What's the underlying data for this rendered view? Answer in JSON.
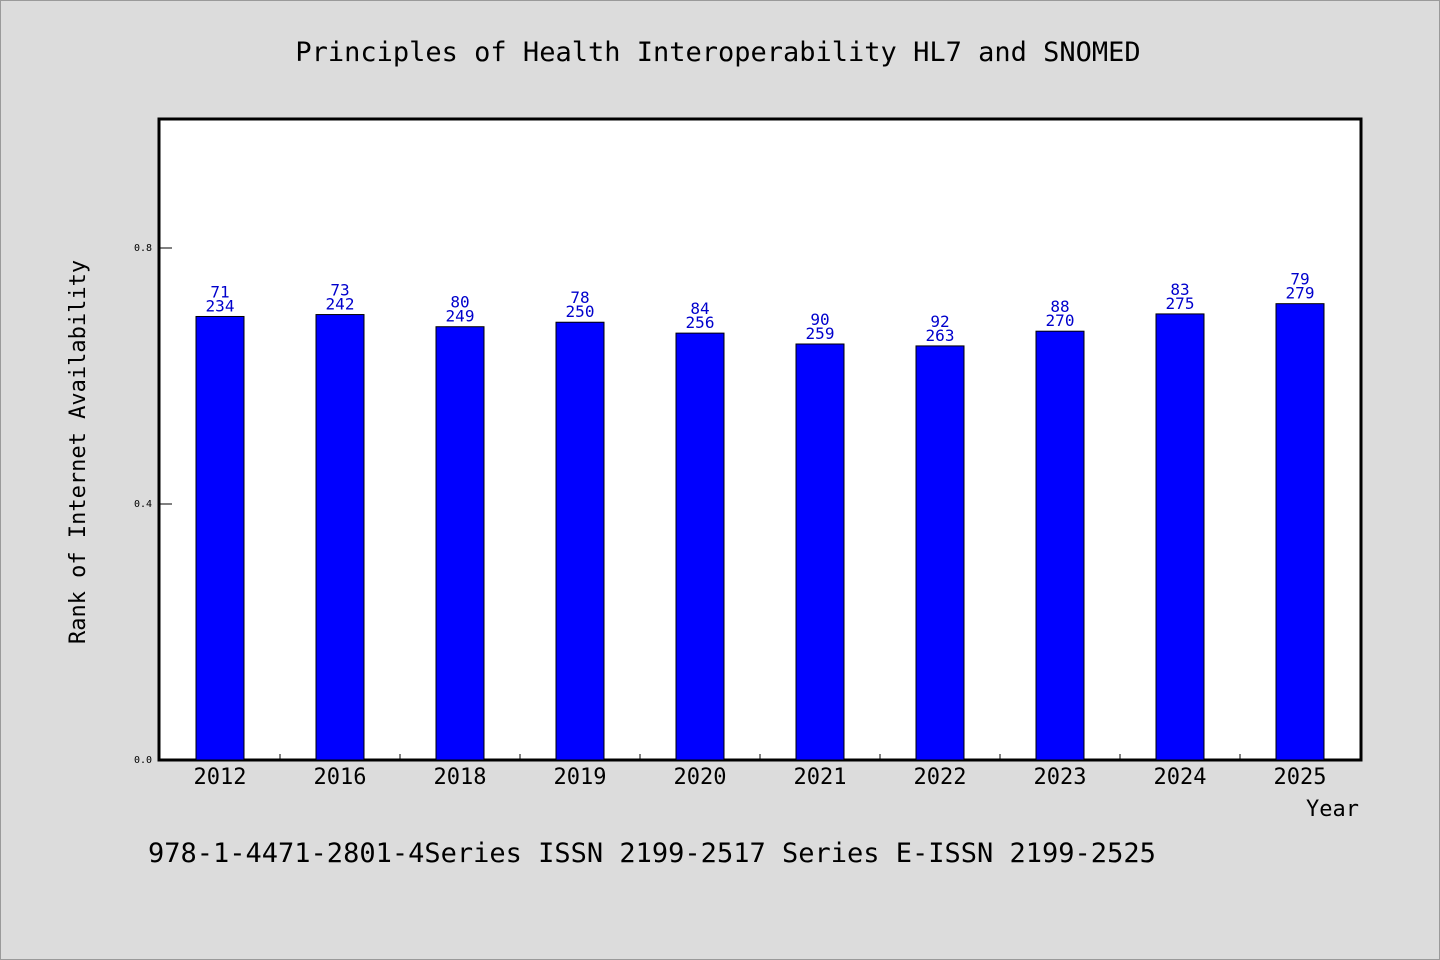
{
  "chart_data": {
    "type": "bar",
    "title": "Principles of Health Interoperability HL7 and SNOMED",
    "xlabel": "Year",
    "ylabel": "Rank of Internet Availability",
    "categories": [
      "2012",
      "2016",
      "2018",
      "2019",
      "2020",
      "2021",
      "2022",
      "2023",
      "2024",
      "2025"
    ],
    "values": [
      0.693,
      0.696,
      0.677,
      0.684,
      0.667,
      0.65,
      0.647,
      0.67,
      0.697,
      0.713
    ],
    "labels_top": [
      "71",
      "73",
      "80",
      "78",
      "84",
      "90",
      "92",
      "88",
      "83",
      "79"
    ],
    "labels_bottom": [
      "234",
      "242",
      "249",
      "250",
      "256",
      "259",
      "263",
      "270",
      "275",
      "279"
    ],
    "ylim": [
      0,
      1.0
    ],
    "yticks": [
      0.0,
      0.4,
      0.8
    ],
    "ytick_labels": [
      "0.0",
      "0.4",
      "0.8"
    ],
    "grid": false,
    "bar_color": "#0000ff",
    "label_color": "#0000cc"
  },
  "footer": "978-1-4471-2801-4Series ISSN 2199-2517 Series E-ISSN 2199-2525"
}
